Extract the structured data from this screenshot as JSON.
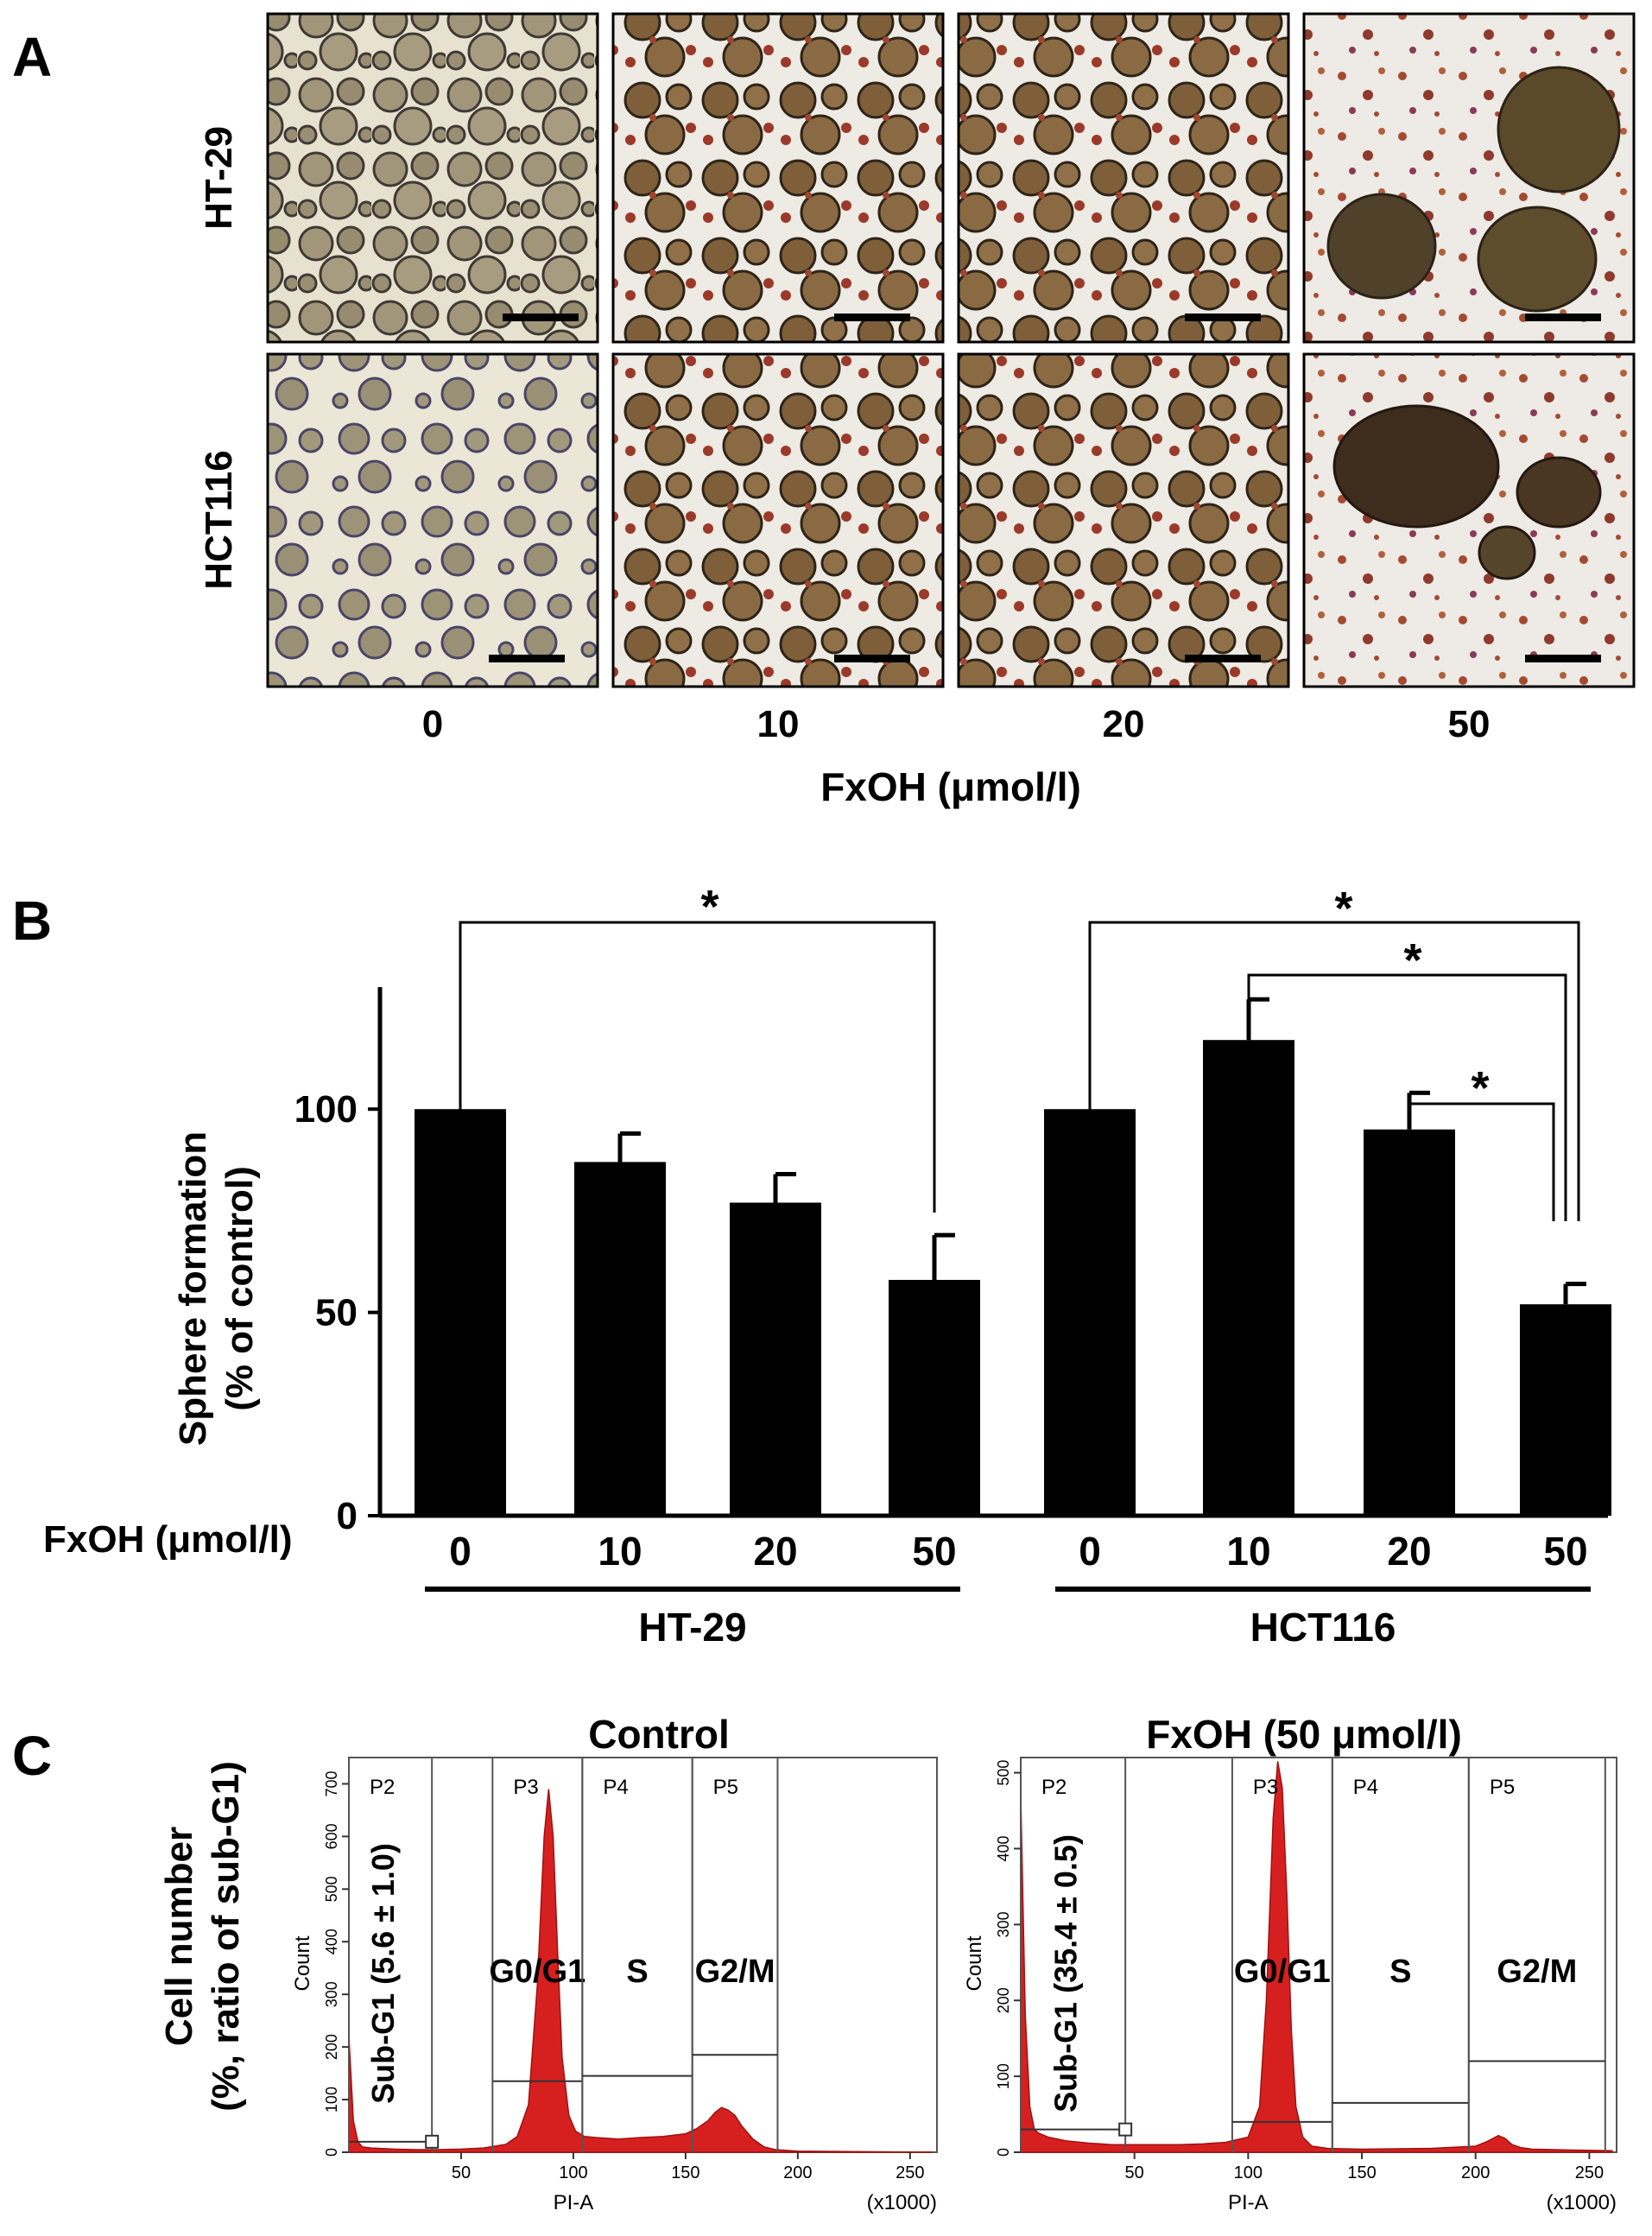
{
  "panel_a": {
    "label": "A",
    "rows": [
      "HT-29",
      "HCT116"
    ],
    "columns": [
      "0",
      "10",
      "20",
      "50"
    ],
    "axis_label": "FxOH (μmol/l)"
  },
  "panel_b": {
    "label": "B",
    "side_label": "FxOH (μmol/l)",
    "ylabel_line1": "Sphere formation",
    "ylabel_line2": "(% of control)",
    "group_labels": [
      "HT-29",
      "HCT116"
    ],
    "significance": [
      "*",
      "*",
      "*",
      "*"
    ]
  },
  "panel_c": {
    "label": "C",
    "ylabel_line1": "Cell number",
    "ylabel_line2": "(%, ratio of sub-G1)",
    "x_axis_title": "PI-A",
    "x_scale_note": "(x1000)",
    "y_axis_title": "Count",
    "gate_labels": [
      "P2",
      "P3",
      "P4",
      "P5"
    ],
    "phase_labels": [
      "G0/G1",
      "S",
      "G2/M"
    ],
    "hist_color": "#d62020",
    "x_ticks": [
      "50",
      "100",
      "150",
      "200",
      "250"
    ],
    "panels": [
      {
        "title": "Control",
        "subg1": "Sub-G1 (5.6 ± 1.0)",
        "y_ticks": [
          "0",
          "100",
          "200",
          "300",
          "400",
          "500",
          "600",
          "700"
        ]
      },
      {
        "title": "FxOH  (50 μmol/l)",
        "subg1": "Sub-G1 (35.4 ± 0.5)",
        "y_ticks": [
          "0",
          "100",
          "200",
          "300",
          "400",
          "500"
        ]
      }
    ]
  },
  "chart_data": [
    {
      "type": "bar",
      "categories": [
        "0",
        "10",
        "20",
        "50",
        "0",
        "10",
        "20",
        "50"
      ],
      "groups": [
        "HT-29",
        "HT-29",
        "HT-29",
        "HT-29",
        "HCT116",
        "HCT116",
        "HCT116",
        "HCT116"
      ],
      "values": [
        100,
        87,
        77,
        58,
        100,
        117,
        95,
        52
      ],
      "errors": [
        0,
        7,
        7,
        11,
        0,
        10,
        9,
        5
      ],
      "xlabel": "FxOH (μmol/l)",
      "ylabel": "Sphere formation (% of control)",
      "ylim": [
        0,
        130
      ],
      "y_ticks": [
        0,
        50,
        100
      ],
      "color": "#000000"
    },
    {
      "type": "area",
      "title": "Control",
      "xlabel": "PI-A",
      "ylabel": "Count",
      "xlim": [
        0,
        262
      ],
      "ylim": [
        0,
        750
      ],
      "x_ticks": [
        50,
        100,
        150,
        200,
        250
      ],
      "y_ticks": [
        0,
        100,
        200,
        300,
        400,
        500,
        600,
        700
      ],
      "x": [
        0,
        2,
        4,
        6,
        10,
        20,
        30,
        40,
        50,
        60,
        70,
        75,
        80,
        84,
        87,
        89,
        91,
        93,
        95,
        98,
        101,
        105,
        110,
        120,
        130,
        140,
        150,
        155,
        160,
        163,
        166,
        169,
        172,
        175,
        180,
        185,
        190,
        200,
        260
      ],
      "y": [
        220,
        60,
        20,
        10,
        8,
        6,
        5,
        5,
        6,
        8,
        15,
        30,
        90,
        320,
        600,
        690,
        600,
        380,
        180,
        70,
        40,
        30,
        28,
        25,
        28,
        30,
        35,
        45,
        60,
        75,
        85,
        80,
        70,
        50,
        25,
        10,
        5,
        2,
        0
      ],
      "gates": [
        {
          "name": "P2",
          "phase": "Sub-G1",
          "from": 0,
          "to": 37,
          "level": 20
        },
        {
          "name": "P3",
          "phase": "G0/G1",
          "from": 64,
          "to": 104,
          "level": 135
        },
        {
          "name": "P4",
          "phase": "S",
          "from": 104,
          "to": 153,
          "level": 145
        },
        {
          "name": "P5",
          "phase": "G2/M",
          "from": 153,
          "to": 191,
          "level": 185
        }
      ]
    },
    {
      "type": "area",
      "title": "FxOH  (50 μmol/l)",
      "xlabel": "PI-A",
      "ylabel": "Count",
      "xlim": [
        0,
        262
      ],
      "ylim": [
        0,
        520
      ],
      "x_ticks": [
        50,
        100,
        150,
        200,
        250
      ],
      "y_ticks": [
        0,
        100,
        200,
        300,
        400,
        500
      ],
      "x": [
        0,
        2,
        4,
        6,
        8,
        12,
        20,
        30,
        40,
        50,
        60,
        70,
        80,
        90,
        100,
        105,
        108,
        111,
        113,
        115,
        117,
        119,
        121,
        124,
        128,
        135,
        150,
        180,
        200,
        205,
        210,
        213,
        216,
        220,
        225,
        240,
        260
      ],
      "y": [
        470,
        180,
        60,
        30,
        25,
        20,
        15,
        12,
        10,
        10,
        10,
        10,
        11,
        13,
        20,
        60,
        200,
        440,
        515,
        480,
        340,
        160,
        60,
        20,
        8,
        5,
        4,
        5,
        8,
        14,
        22,
        18,
        10,
        6,
        4,
        3,
        2
      ],
      "gates": [
        {
          "name": "P2",
          "phase": "Sub-G1",
          "from": 0,
          "to": 46,
          "level": 30
        },
        {
          "name": "P3",
          "phase": "G0/G1",
          "from": 93,
          "to": 137,
          "level": 40
        },
        {
          "name": "P4",
          "phase": "S",
          "from": 137,
          "to": 197,
          "level": 65
        },
        {
          "name": "P5",
          "phase": "G2/M",
          "from": 197,
          "to": 257,
          "level": 120
        }
      ]
    }
  ]
}
